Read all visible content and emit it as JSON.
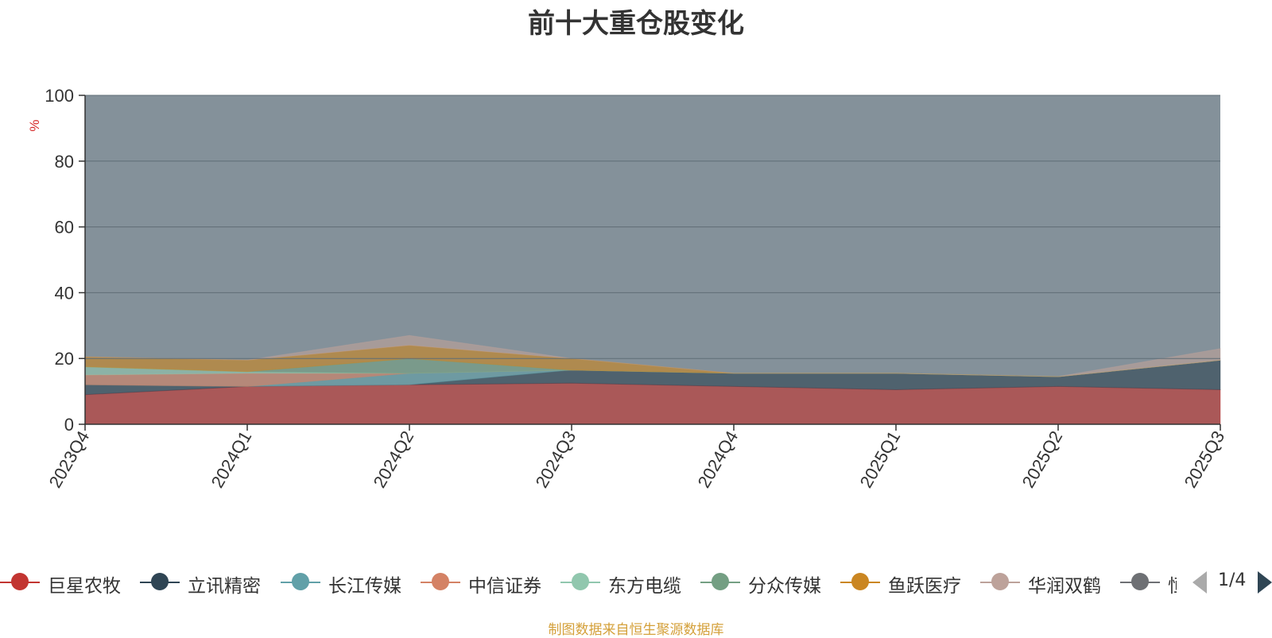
{
  "chart_data": {
    "type": "area",
    "title": "前十大重仓股变化",
    "ylabel": "%",
    "ylim": [
      0,
      100
    ],
    "yticks": [
      0,
      20,
      40,
      60,
      80,
      100
    ],
    "grid": true,
    "stacked": true,
    "categories": [
      "2023Q4",
      "2024Q1",
      "2024Q2",
      "2024Q3",
      "2024Q4",
      "2025Q1",
      "2025Q2",
      "2025Q3"
    ],
    "series": [
      {
        "name": "巨星农牧",
        "color": "#c23531",
        "values": [
          9.0,
          11.5,
          12.0,
          12.5,
          11.5,
          10.5,
          11.5,
          10.5
        ]
      },
      {
        "name": "立讯精密",
        "color": "#2f4554",
        "values": [
          3.0,
          0.0,
          0.0,
          4.0,
          4.0,
          5.0,
          3.0,
          9.0
        ]
      },
      {
        "name": "长江传媒",
        "color": "#61a0a8",
        "values": [
          0.0,
          0.0,
          3.5,
          0.0,
          0.0,
          0.0,
          0.0,
          0.0
        ]
      },
      {
        "name": "中信证券",
        "color": "#d48265",
        "values": [
          3.0,
          4.0,
          0.0,
          0.0,
          0.0,
          0.0,
          0.0,
          0.0
        ]
      },
      {
        "name": "东方电缆",
        "color": "#91c7ae",
        "values": [
          2.5,
          0.5,
          0.0,
          0.0,
          0.0,
          0.0,
          0.0,
          0.0
        ]
      },
      {
        "name": "分众传媒",
        "color": "#749f83",
        "values": [
          0.0,
          0.0,
          4.5,
          0.0,
          0.0,
          0.0,
          0.0,
          0.0
        ]
      },
      {
        "name": "鱼跃医疗",
        "color": "#ca8622",
        "values": [
          3.0,
          3.5,
          4.0,
          3.5,
          0.0,
          0.0,
          0.0,
          0.0
        ]
      },
      {
        "name": "华润双鹤",
        "color": "#bda29a",
        "values": [
          0.0,
          0.0,
          3.0,
          0.0,
          0.0,
          0.0,
          0.0,
          3.5
        ]
      }
    ],
    "legend": {
      "position": "bottom",
      "page": "1/4"
    }
  },
  "legend_truncated_label": "恒",
  "source_note": "制图数据来自恒生聚源数据库"
}
